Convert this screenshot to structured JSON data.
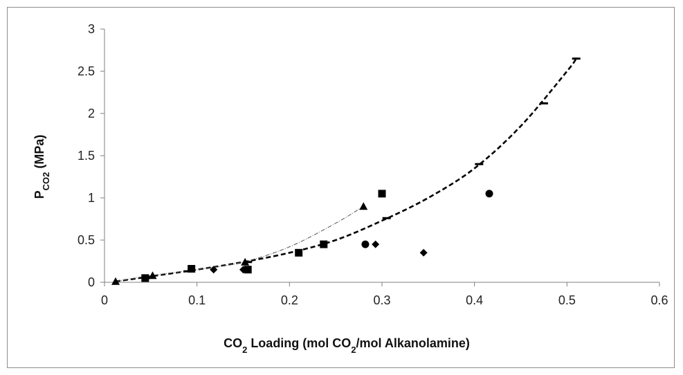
{
  "chart_data": {
    "type": "scatter",
    "title": "",
    "xlabel": {
      "parts": [
        {
          "text": "CO",
          "sub": false
        },
        {
          "text": "2",
          "sub": true
        },
        {
          "text": " Loading (mol CO",
          "sub": false
        },
        {
          "text": "2",
          "sub": true
        },
        {
          "text": "/mol Alkanolamine)",
          "sub": false
        }
      ]
    },
    "ylabel": {
      "parts": [
        {
          "text": "P",
          "sub": false
        },
        {
          "text": "CO2",
          "sub": true
        },
        {
          "text": " (MPa)",
          "sub": false
        }
      ]
    },
    "xlim": [
      0,
      0.6
    ],
    "ylim": [
      0,
      3
    ],
    "x_ticks": [
      0,
      0.1,
      0.2,
      0.3,
      0.4,
      0.5,
      0.6
    ],
    "x_tick_labels": [
      "0",
      "0.1",
      "0.2",
      "0.3",
      "0.4",
      "0.5",
      "0.6"
    ],
    "y_ticks": [
      0,
      0.5,
      1,
      1.5,
      2,
      2.5,
      3
    ],
    "y_tick_labels": [
      "0",
      "0.5",
      "1",
      "1.5",
      "2",
      "2.5",
      "3"
    ],
    "grid": false,
    "legend": "none",
    "series": [
      {
        "marker": "triangle",
        "color": "#000000",
        "x": [
          0.012,
          0.052,
          0.152,
          0.28
        ],
        "y": [
          0.01,
          0.08,
          0.24,
          0.9
        ]
      },
      {
        "marker": "square",
        "color": "#000000",
        "x": [
          0.044,
          0.094,
          0.155,
          0.21,
          0.237,
          0.3
        ],
        "y": [
          0.05,
          0.16,
          0.15,
          0.35,
          0.45,
          1.05
        ]
      },
      {
        "marker": "diamond",
        "color": "#000000",
        "x": [
          0.118,
          0.15,
          0.293,
          0.345
        ],
        "y": [
          0.15,
          0.15,
          0.45,
          0.35
        ]
      },
      {
        "marker": "circle",
        "color": "#000000",
        "x": [
          0.282,
          0.416
        ],
        "y": [
          0.45,
          1.05
        ]
      },
      {
        "marker": "dash",
        "color": "#000000",
        "x": [
          0.045,
          0.09,
          0.155,
          0.305,
          0.405,
          0.475,
          0.51
        ],
        "y": [
          0.05,
          0.13,
          0.24,
          0.76,
          1.4,
          2.12,
          2.65
        ]
      }
    ],
    "trend_lines": [
      {
        "style": "dashed-thick",
        "color": "#000000",
        "x": [
          0.012,
          0.05,
          0.1,
          0.15,
          0.2,
          0.25,
          0.3,
          0.35,
          0.4,
          0.45,
          0.5,
          0.51
        ],
        "y": [
          0.01,
          0.07,
          0.15,
          0.24,
          0.35,
          0.5,
          0.73,
          1.0,
          1.35,
          1.85,
          2.5,
          2.65
        ]
      },
      {
        "style": "dash-dot-thin",
        "color": "#555555",
        "x": [
          0.012,
          0.05,
          0.1,
          0.15,
          0.2,
          0.25,
          0.28
        ],
        "y": [
          0.01,
          0.08,
          0.15,
          0.24,
          0.42,
          0.7,
          0.9
        ]
      }
    ]
  }
}
